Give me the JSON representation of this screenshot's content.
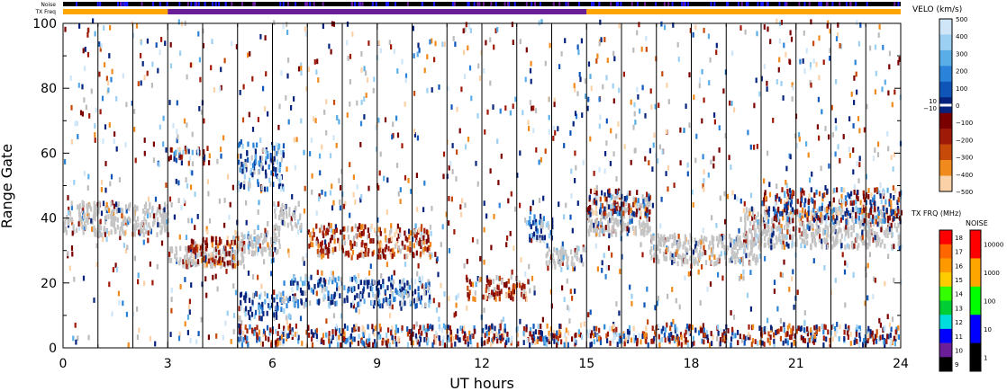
{
  "chart_data": {
    "type": "heatmap",
    "xlabel": "UT hours",
    "ylabel": "Range Gate",
    "xlim": [
      0,
      24
    ],
    "ylim": [
      0,
      100
    ],
    "x_ticks": [
      "0",
      "3",
      "6",
      "9",
      "12",
      "15",
      "18",
      "21",
      "24"
    ],
    "y_ticks": [
      "0",
      "20",
      "40",
      "60",
      "80",
      "100"
    ],
    "scan_boundaries_hours": [
      1,
      2,
      3,
      4,
      5,
      6,
      7,
      8,
      9,
      10,
      11,
      12,
      13,
      14,
      15,
      16,
      17,
      18,
      19,
      20,
      21,
      22,
      23
    ],
    "top_bars": {
      "noise_label": "Noise",
      "txfreq_label": "TX Freq",
      "txfreq_segments": [
        {
          "from": 0,
          "to": 3,
          "color": "#ffa500"
        },
        {
          "from": 3,
          "to": 15,
          "color": "#6a1f99"
        },
        {
          "from": 15,
          "to": 24,
          "color": "#ffa500"
        }
      ]
    },
    "velocity_scale": {
      "title": "VELO (km/s)",
      "labels": [
        "500",
        "400",
        "300",
        "200",
        "100",
        "0",
        "−100",
        "−200",
        "−300",
        "−400",
        "−500"
      ],
      "extra_labels": [
        "10",
        "−10"
      ],
      "colors": [
        "#cfe6f8",
        "#9cd0f2",
        "#5aaee8",
        "#2a83d8",
        "#0f55b8",
        "#06247e",
        "#7a0000",
        "#a01a08",
        "#c84a08",
        "#f08a1c",
        "#fbd2a8"
      ]
    },
    "txfrq_scale": {
      "title": "TX FRQ (MHz)",
      "labels": [
        "18",
        "17",
        "16",
        "15",
        "14",
        "13",
        "12",
        "11",
        "10",
        "9"
      ],
      "colors": [
        "#ff0000",
        "#ff6600",
        "#ff9900",
        "#ffcc00",
        "#33ff00",
        "#00cc33",
        "#00dddd",
        "#0000ff",
        "#6a1f99",
        "#000000"
      ]
    },
    "noise_scale": {
      "title": "NOISE",
      "labels": [
        "10000",
        "1000",
        "100",
        "10",
        "1"
      ],
      "colors": [
        "#ff0000",
        "#ffa500",
        "#00ff00",
        "#0000ff",
        "#000000"
      ]
    },
    "echo_bands": [
      {
        "x0": 0.0,
        "x1": 3.0,
        "y0": 34,
        "y1": 44,
        "kind": "ground"
      },
      {
        "x0": 3.0,
        "x1": 5.2,
        "y0": 24,
        "y1": 30,
        "kind": "ground"
      },
      {
        "x0": 4.8,
        "x1": 6.2,
        "y0": 28,
        "y1": 35,
        "kind": "ground"
      },
      {
        "x0": 6.0,
        "x1": 6.8,
        "y0": 36,
        "y1": 44,
        "kind": "ground"
      },
      {
        "x0": 3.0,
        "x1": 4.2,
        "y0": 56,
        "y1": 61,
        "kind": "mixed"
      },
      {
        "x0": 3.5,
        "x1": 5.0,
        "y0": 24,
        "y1": 33,
        "kind": "negative"
      },
      {
        "x0": 5.0,
        "x1": 6.3,
        "y0": 48,
        "y1": 62,
        "kind": "positive"
      },
      {
        "x0": 5.0,
        "x1": 6.5,
        "y0": 8,
        "y1": 16,
        "kind": "positive"
      },
      {
        "x0": 6.5,
        "x1": 10.5,
        "y0": 12,
        "y1": 21,
        "kind": "positive"
      },
      {
        "x0": 7.0,
        "x1": 10.5,
        "y0": 27,
        "y1": 37,
        "kind": "negative"
      },
      {
        "x0": 11.5,
        "x1": 13.3,
        "y0": 14,
        "y1": 21,
        "kind": "negative"
      },
      {
        "x0": 13.2,
        "x1": 14.0,
        "y0": 32,
        "y1": 40,
        "kind": "positive"
      },
      {
        "x0": 13.8,
        "x1": 15.0,
        "y0": 24,
        "y1": 30,
        "kind": "ground"
      },
      {
        "x0": 15.0,
        "x1": 16.8,
        "y0": 34,
        "y1": 46,
        "kind": "ground"
      },
      {
        "x0": 15.0,
        "x1": 16.8,
        "y0": 40,
        "y1": 48,
        "kind": "mixed"
      },
      {
        "x0": 16.8,
        "x1": 20.0,
        "y0": 25,
        "y1": 34,
        "kind": "ground"
      },
      {
        "x0": 19.5,
        "x1": 24.0,
        "y0": 30,
        "y1": 42,
        "kind": "ground"
      },
      {
        "x0": 20.0,
        "x1": 24.0,
        "y0": 38,
        "y1": 48,
        "kind": "mixed"
      },
      {
        "x0": 5.0,
        "x1": 24.0,
        "y0": 0,
        "y1": 6,
        "kind": "mixed"
      }
    ]
  }
}
